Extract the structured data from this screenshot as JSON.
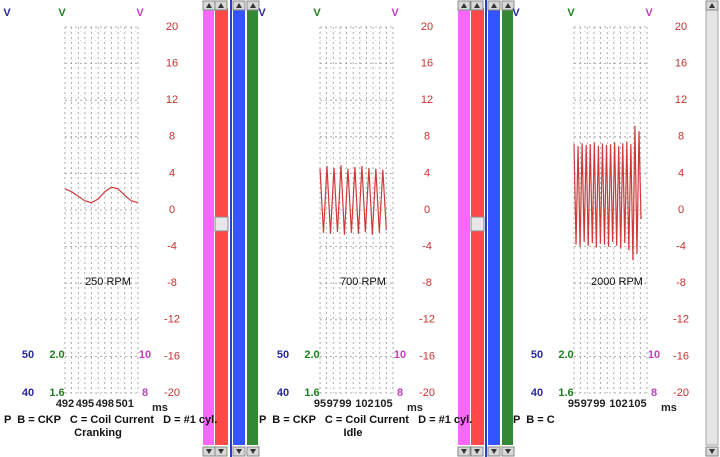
{
  "chart_data": [
    {
      "type": "line",
      "annotation": "250 RPM",
      "footer": "P  B = CKP   C = Coil Current   D = #1 cyl.",
      "subtitle": "Cranking",
      "xlabel": "ms",
      "scales": [
        {
          "unit": "V",
          "color": "#2828a0",
          "max": "50",
          "min": "40"
        },
        {
          "unit": "V",
          "color": "#208020",
          "max": "2.0",
          "min": "1.6"
        },
        {
          "unit": "V",
          "color": "#c040c0",
          "max": "10",
          "min": "8"
        }
      ],
      "xlim": [
        492,
        503
      ],
      "xticks": [
        492,
        495,
        498,
        501
      ],
      "ylim": [
        -20,
        20
      ],
      "yticks": [
        20,
        16,
        12,
        8,
        4,
        0,
        -4,
        -8,
        -12,
        -16,
        -20
      ],
      "x": [
        492,
        493,
        494,
        495,
        496,
        497,
        498,
        499,
        500,
        501,
        502,
        503
      ],
      "series": [
        {
          "name": "D",
          "color": "#d03a3a",
          "values": [
            2.3,
            2.0,
            1.5,
            1.0,
            0.8,
            1.2,
            2.0,
            2.5,
            2.3,
            1.6,
            1.0,
            0.8
          ]
        }
      ]
    },
    {
      "type": "line",
      "annotation": "700 RPM",
      "footer": "P  B = CKP   C = Coil Current   D = #1 cyl.",
      "subtitle": "Idle",
      "xlabel": "ms",
      "scales": [
        {
          "unit": "V",
          "color": "#2828a0",
          "max": "50",
          "min": "40"
        },
        {
          "unit": "V",
          "color": "#208020",
          "max": "2.0",
          "min": "1.6"
        },
        {
          "unit": "V",
          "color": "#c040c0",
          "max": "10",
          "min": "8"
        }
      ],
      "xlim": [
        95,
        106.5
      ],
      "xticks": [
        95,
        97,
        99,
        102,
        105
      ],
      "ylim": [
        -20,
        20
      ],
      "yticks": [
        20,
        16,
        12,
        8,
        4,
        0,
        -4,
        -8,
        -12,
        -16,
        -20
      ],
      "x": [
        95,
        95.55,
        96.1,
        96.65,
        97.2,
        97.75,
        98.3,
        98.85,
        99.4,
        99.95,
        100.5,
        101.05,
        101.6,
        102.15,
        102.7,
        103.25,
        103.8,
        104.35,
        104.9,
        105.45
      ],
      "series": [
        {
          "name": "D",
          "color": "#d03a3a",
          "values": [
            4.5,
            -2.5,
            4.8,
            -2.6,
            4.6,
            -2.4,
            4.9,
            -2.7,
            4.5,
            -2.5,
            4.7,
            -2.6,
            4.8,
            -2.4,
            4.6,
            -2.7,
            4.5,
            -2.5,
            4.4,
            -2.2
          ]
        }
      ]
    },
    {
      "type": "line",
      "annotation": "2000 RPM",
      "footer": "P  B = C",
      "xlabel": "ms",
      "scales": [
        {
          "unit": "V",
          "color": "#2828a0",
          "max": "50",
          "min": "40"
        },
        {
          "unit": "V",
          "color": "#208020",
          "max": "2.0",
          "min": "1.6"
        },
        {
          "unit": "V",
          "color": "#c040c0",
          "max": "10",
          "min": "8"
        }
      ],
      "xlim": [
        95,
        106.5
      ],
      "xticks": [
        95,
        97,
        99,
        102,
        105
      ],
      "ylim": [
        -20,
        20
      ],
      "yticks": [
        20,
        16,
        12,
        8,
        4,
        0,
        -4,
        -8,
        -12,
        -16,
        -20
      ],
      "x": [
        95,
        95.32,
        95.64,
        95.96,
        96.28,
        96.6,
        96.92,
        97.24,
        97.56,
        97.88,
        98.2,
        98.52,
        98.84,
        99.16,
        99.48,
        99.8,
        100.12,
        100.44,
        100.76,
        101.08,
        101.4,
        101.72,
        102.04,
        102.36,
        102.68,
        103,
        103.32,
        103.64,
        103.96,
        104.28,
        104.6,
        104.92,
        105.24,
        105.56
      ],
      "series": [
        {
          "name": "D",
          "color": "#d03a3a",
          "values": [
            7.2,
            -3.8,
            7.0,
            -4.0,
            7.3,
            -3.5,
            7.1,
            -3.9,
            7.2,
            -3.6,
            7.4,
            -4.1,
            7.0,
            -3.7,
            7.3,
            -3.8,
            7.1,
            -4.0,
            7.2,
            -3.5,
            7.4,
            -3.9,
            7.0,
            -4.2,
            7.3,
            -3.6,
            7.5,
            -4.4,
            7.2,
            -5.5,
            9.2,
            -4.8,
            8.6,
            -1.0
          ]
        }
      ]
    }
  ]
}
